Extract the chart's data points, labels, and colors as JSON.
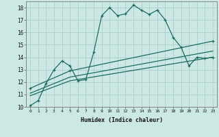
{
  "xlabel": "Humidex (Indice chaleur)",
  "background_color": "#cce8e4",
  "grid_color": "#aaceca",
  "line_color": "#1d6b5e",
  "xlim": [
    -0.5,
    23.5
  ],
  "ylim": [
    10,
    18.5
  ],
  "yticks": [
    10,
    11,
    12,
    13,
    14,
    15,
    16,
    17,
    18
  ],
  "xticks": [
    0,
    1,
    2,
    3,
    4,
    5,
    6,
    7,
    8,
    9,
    10,
    11,
    12,
    13,
    14,
    15,
    16,
    17,
    18,
    19,
    20,
    21,
    22,
    23
  ],
  "series1_x": [
    0,
    1,
    2,
    3,
    4,
    5,
    6,
    7,
    8,
    9,
    10,
    11,
    12,
    13,
    14,
    15,
    16,
    17,
    18,
    19,
    20,
    21,
    22,
    23
  ],
  "series1_y": [
    10.1,
    10.5,
    11.9,
    13.0,
    13.7,
    13.3,
    12.1,
    12.2,
    14.4,
    17.35,
    18.0,
    17.35,
    17.5,
    18.2,
    17.8,
    17.45,
    17.8,
    17.0,
    15.6,
    14.8,
    13.3,
    14.0,
    13.9,
    14.0
  ],
  "series2_x": [
    0,
    5,
    23
  ],
  "series2_y": [
    11.5,
    12.9,
    15.3
  ],
  "series3_x": [
    0,
    5,
    23
  ],
  "series3_y": [
    11.1,
    12.4,
    14.5
  ],
  "series4_x": [
    0,
    5,
    23
  ],
  "series4_y": [
    10.9,
    12.1,
    14.0
  ]
}
